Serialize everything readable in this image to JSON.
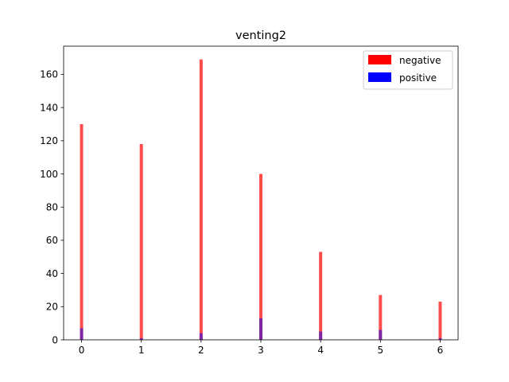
{
  "chart_data": {
    "type": "bar",
    "title": "venting2",
    "xlabel": "",
    "ylabel": "",
    "x": [
      0,
      1,
      2,
      3,
      4,
      5,
      6
    ],
    "xlim": [
      -0.3,
      6.3
    ],
    "ylim": [
      0,
      177
    ],
    "xticks": [
      "0",
      "1",
      "2",
      "3",
      "4",
      "5",
      "6"
    ],
    "yticks": [
      0,
      20,
      40,
      60,
      80,
      100,
      120,
      140,
      160
    ],
    "series": [
      {
        "name": "negative",
        "color": "#ff0000",
        "opacity": 0.7,
        "values": [
          130,
          118,
          169,
          100,
          53,
          27,
          23
        ]
      },
      {
        "name": "positive",
        "color": "#0000ff",
        "opacity": 0.5,
        "values": [
          7,
          1,
          4,
          13,
          5,
          6,
          1
        ]
      }
    ],
    "legend": {
      "position": "top-right",
      "entries": [
        "negative",
        "positive"
      ]
    },
    "grid": false
  }
}
